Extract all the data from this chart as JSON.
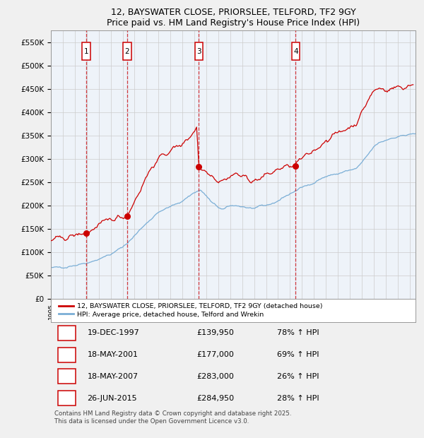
{
  "title": "12, BAYSWATER CLOSE, PRIORSLEE, TELFORD, TF2 9GY",
  "subtitle": "Price paid vs. HM Land Registry's House Price Index (HPI)",
  "purchase_table": [
    {
      "num": "1",
      "date": "19-DEC-1997",
      "price": "£139,950",
      "hpi": "78% ↑ HPI"
    },
    {
      "num": "2",
      "date": "18-MAY-2001",
      "price": "£177,000",
      "hpi": "69% ↑ HPI"
    },
    {
      "num": "3",
      "date": "18-MAY-2007",
      "price": "£283,000",
      "hpi": "26% ↑ HPI"
    },
    {
      "num": "4",
      "date": "26-JUN-2015",
      "price": "£284,950",
      "hpi": "28% ↑ HPI"
    }
  ],
  "legend_line1": "12, BAYSWATER CLOSE, PRIORSLEE, TELFORD, TF2 9GY (detached house)",
  "legend_line2": "HPI: Average price, detached house, Telford and Wrekin",
  "footer": "Contains HM Land Registry data © Crown copyright and database right 2025.\nThis data is licensed under the Open Government Licence v3.0.",
  "xmin": 1995.0,
  "xmax": 2025.5,
  "ymin": 0,
  "ymax": 575000,
  "ytick_vals": [
    0,
    50000,
    100000,
    150000,
    200000,
    250000,
    300000,
    350000,
    400000,
    450000,
    500000,
    550000
  ],
  "purchase_dates": [
    1997.97,
    2001.38,
    2007.38,
    2015.48
  ],
  "purchase_prices": [
    139950,
    177000,
    283000,
    284950
  ],
  "purchase_nums": [
    "1",
    "2",
    "3",
    "4"
  ],
  "red_color": "#cc0000",
  "blue_color": "#7aaed6",
  "bg_color": "#f0f0f0",
  "plot_bg": "#ffffff",
  "shade_color": "#d0dff0",
  "grid_color": "#cccccc"
}
